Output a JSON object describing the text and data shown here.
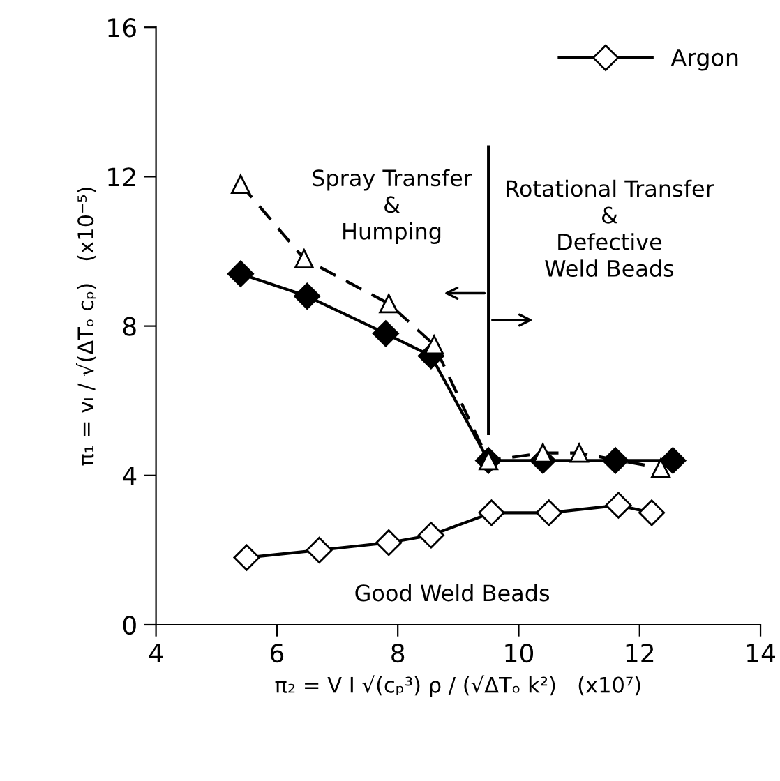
{
  "chart_data": {
    "type": "line",
    "xlabel": "π₂ = V I √(cₚ³) ρ / (√ΔTₒ k²)   (x10⁷)",
    "ylabel": "π₁ = vₗ / √(ΔTₒ cₚ)   (x10⁻⁵)",
    "series": [
      {
        "name": "Argon",
        "color": "#000000",
        "marker": "diamond",
        "line_style": "solid",
        "x": [
          5.5,
          6.7,
          7.85,
          8.55,
          9.55,
          10.5,
          11.65,
          12.2
        ],
        "values": [
          1.8,
          2.0,
          2.2,
          2.4,
          3.0,
          3.0,
          3.2,
          3.0
        ]
      },
      {
        "color": "#000000",
        "marker": "diamond",
        "line_style": "solid",
        "x": [
          5.4,
          6.5,
          7.8,
          8.55,
          9.5,
          10.4,
          11.6,
          12.55
        ],
        "values": [
          9.4,
          8.8,
          7.8,
          7.2,
          4.4,
          4.4,
          4.4,
          4.4
        ]
      },
      {
        "color": "#000000",
        "marker": "triangle",
        "line_style": "dashed",
        "x": [
          5.4,
          6.45,
          7.85,
          8.6,
          9.5,
          10.4,
          11.0,
          12.35
        ],
        "values": [
          11.8,
          9.8,
          8.6,
          7.5,
          4.4,
          4.6,
          4.6,
          4.2
        ]
      }
    ],
    "annotations": [
      "Spray Transfer\n&\nHumping",
      "Rotational Transfer\n&\nDefective\nWeld Beads",
      "Good Weld Beads"
    ],
    "ref_lines": [
      {
        "axis": "x",
        "value": 9.5,
        "color": "#000000",
        "line_style": "solid"
      }
    ],
    "xlim": [
      4,
      14
    ],
    "xticks": [
      4,
      6,
      8,
      10,
      12,
      14
    ],
    "ylim": [
      0,
      16
    ],
    "yticks": [
      0,
      4,
      8,
      12,
      16
    ],
    "grid": false,
    "legend": "top right"
  }
}
